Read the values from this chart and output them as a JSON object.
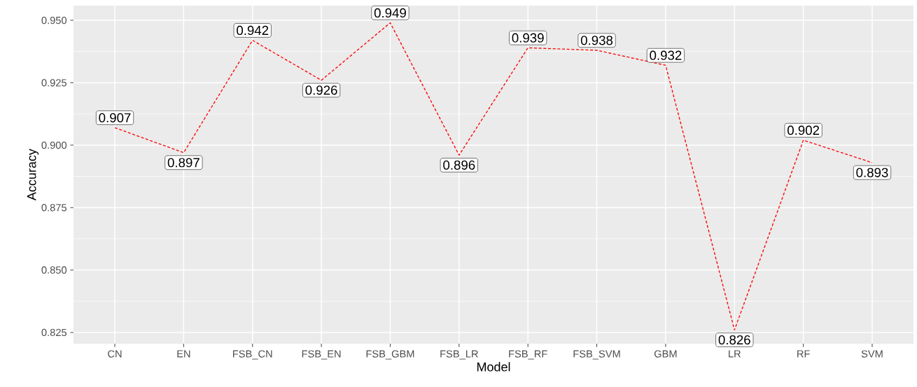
{
  "chart_data": {
    "type": "line",
    "xlabel": "Model",
    "ylabel": "Accuracy",
    "categories": [
      "CN",
      "EN",
      "FSB_CN",
      "FSB_EN",
      "FSB_GBM",
      "FSB_LR",
      "FSB_RF",
      "FSB_SVM",
      "GBM",
      "LR",
      "RF",
      "SVM"
    ],
    "values": [
      0.907,
      0.897,
      0.942,
      0.926,
      0.949,
      0.896,
      0.939,
      0.938,
      0.932,
      0.826,
      0.902,
      0.893
    ],
    "color": "#ff0000",
    "line_style": "dashed",
    "marker": "none",
    "data_labels": true,
    "grid": true,
    "ylim": [
      0.8205,
      0.9559
    ],
    "yticks": [
      {
        "value": 0.825,
        "label": "0.825"
      },
      {
        "value": 0.85,
        "label": "0.850"
      },
      {
        "value": 0.875,
        "label": "0.875"
      },
      {
        "value": 0.9,
        "label": "0.900"
      },
      {
        "value": 0.925,
        "label": "0.925"
      },
      {
        "value": 0.95,
        "label": "0.950"
      }
    ]
  }
}
